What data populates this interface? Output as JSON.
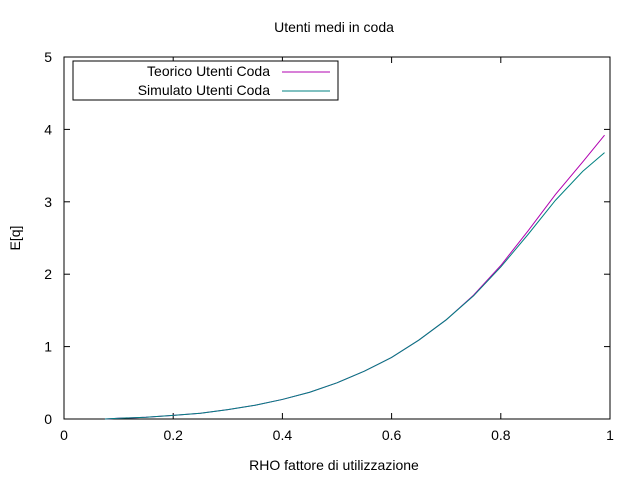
{
  "chart_data": {
    "type": "line",
    "title": "Utenti medi in coda",
    "xlabel": "RHO fattore di utilizzazione",
    "ylabel": "E[q]",
    "xlim": [
      0,
      1
    ],
    "ylim": [
      0,
      5
    ],
    "xticks": [
      0,
      0.2,
      0.4,
      0.6,
      0.8,
      1
    ],
    "xtick_labels": [
      "0",
      "0.2",
      "0.4",
      "0.6",
      "0.8",
      "1"
    ],
    "yticks": [
      0,
      1,
      2,
      3,
      4,
      5
    ],
    "ytick_labels": [
      "0",
      "1",
      "2",
      "3",
      "4",
      "5"
    ],
    "grid": false,
    "legend_position": "top-left",
    "x": [
      0.075,
      0.1,
      0.15,
      0.2,
      0.25,
      0.3,
      0.35,
      0.4,
      0.45,
      0.5,
      0.55,
      0.6,
      0.65,
      0.7,
      0.75,
      0.8,
      0.85,
      0.9,
      0.95,
      0.99
    ],
    "series": [
      {
        "name": "Teorico Utenti Coda",
        "color": "#b000b0",
        "values": [
          0.0,
          0.01,
          0.025,
          0.05,
          0.08,
          0.13,
          0.19,
          0.27,
          0.37,
          0.5,
          0.66,
          0.85,
          1.09,
          1.37,
          1.71,
          2.12,
          2.6,
          3.1,
          3.55,
          3.92
        ]
      },
      {
        "name": "Simulato Utenti Coda",
        "color": "#008080",
        "values": [
          0.0,
          0.01,
          0.025,
          0.05,
          0.08,
          0.13,
          0.19,
          0.27,
          0.37,
          0.5,
          0.66,
          0.85,
          1.09,
          1.37,
          1.7,
          2.1,
          2.55,
          3.02,
          3.42,
          3.68
        ]
      }
    ]
  }
}
